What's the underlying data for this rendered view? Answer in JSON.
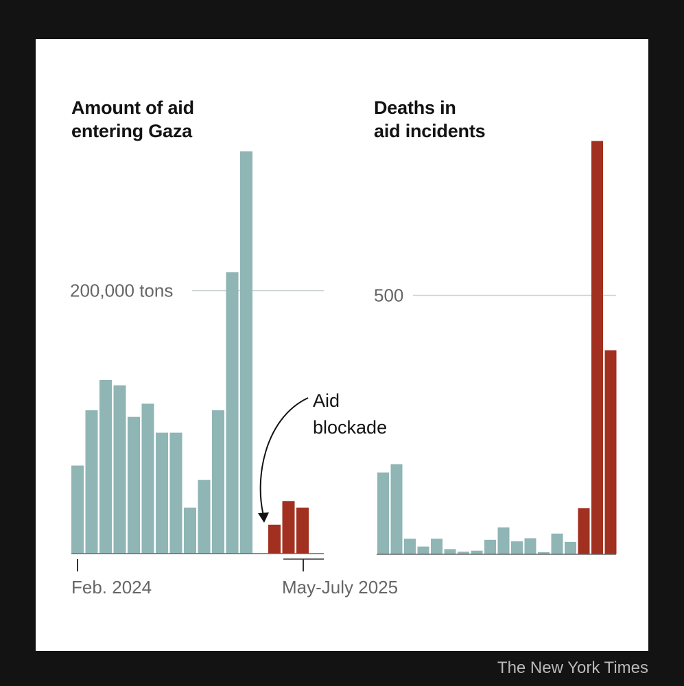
{
  "credit": "The New York Times",
  "colors": {
    "before": "#8fb5b5",
    "after": "#a13020",
    "grid": "#c8d3d3",
    "text": "#666666"
  },
  "annotation": {
    "text_line1": "Aid",
    "text_line2": "blockade"
  },
  "chart_data": [
    {
      "type": "bar",
      "title": "Amount of aid\nentering Gaza",
      "y_unit_label": "200,000 tons",
      "gridline_value": 200000,
      "ylim": [
        0,
        300000
      ],
      "x_tick_labels": [
        "Feb. 2024",
        "May-July 2025"
      ],
      "series": [
        {
          "color_role": "before",
          "values": [
            67000,
            109000,
            132000,
            128000,
            104000,
            114000,
            92000,
            92000,
            35000,
            56000,
            109000,
            214000,
            306000,
            0
          ]
        },
        {
          "color_role": "after",
          "values": [
            22000,
            40000,
            35000
          ]
        }
      ],
      "annotation": "Aid blockade"
    },
    {
      "type": "bar",
      "title": "Deaths in\naid incidents",
      "y_unit_label": "500",
      "gridline_value": 500,
      "ylim": [
        0,
        800
      ],
      "series": [
        {
          "color_role": "before",
          "values": [
            158,
            174,
            30,
            15,
            30,
            10,
            5,
            7,
            28,
            52,
            25,
            31,
            4,
            40,
            24
          ]
        },
        {
          "color_role": "after",
          "values": [
            89,
            798,
            394
          ]
        }
      ]
    }
  ]
}
